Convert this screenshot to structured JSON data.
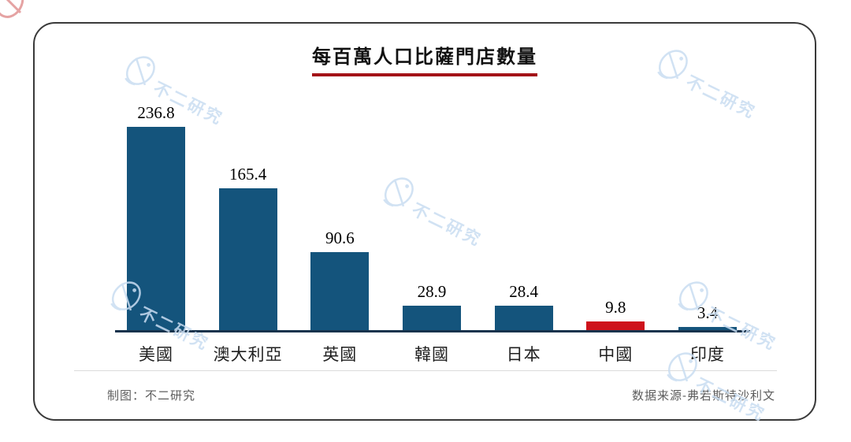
{
  "title": "每百萬人口比薩門店數量",
  "footer": {
    "left": "制图：不二研究",
    "right": "数据来源-弗若斯特沙利文"
  },
  "watermark": {
    "text": "不二研究"
  },
  "colors": {
    "bar": "#14547C",
    "highlight": "#CE121B",
    "title_underline": "#A31217",
    "axis": "#17334D",
    "watermark": "#C9DDF2"
  },
  "chart_data": {
    "type": "bar",
    "title": "每百萬人口比薩門店數量",
    "categories": [
      "美國",
      "澳大利亞",
      "英國",
      "韓國",
      "日本",
      "中國",
      "印度"
    ],
    "values": [
      236.8,
      165.4,
      90.6,
      28.9,
      28.4,
      9.8,
      3.4
    ],
    "highlight_index": 5,
    "highlight_category": "中國",
    "value_labels": [
      "236.8",
      "165.4",
      "90.6",
      "28.9",
      "28.4",
      "9.8",
      "3.4"
    ],
    "ylim": [
      0,
      240
    ],
    "grid": false,
    "legend": false,
    "xlabel": "",
    "ylabel": ""
  }
}
